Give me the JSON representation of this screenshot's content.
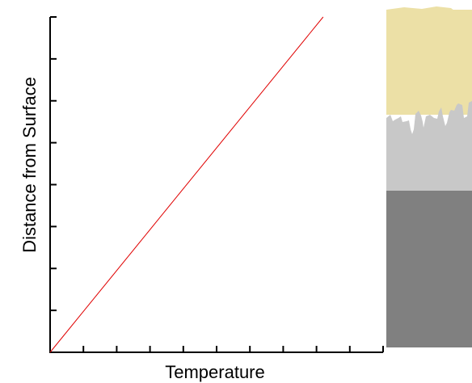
{
  "chart_data": {
    "type": "line",
    "xlabel": "Temperature",
    "ylabel": "Distance from Surface",
    "x_tick_count": 10,
    "y_tick_count": 8,
    "series": [
      {
        "x": [
          0,
          1
        ],
        "y": [
          0,
          1
        ],
        "color": "#e00000"
      }
    ]
  },
  "layers": [
    {
      "color": "#ece0a6",
      "boundary": "irregular"
    },
    {
      "color": "#c8c8c8",
      "boundary": "flat"
    },
    {
      "color": "#808080"
    }
  ],
  "colors": {
    "axis": "#000000",
    "line": "#e00000"
  }
}
